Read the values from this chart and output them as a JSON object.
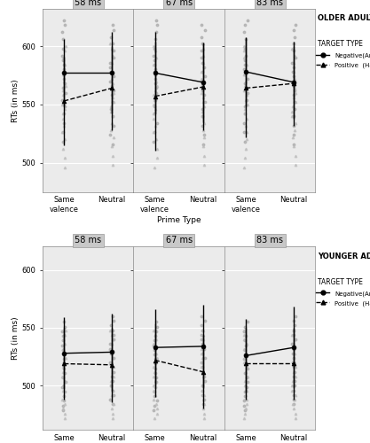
{
  "older": {
    "durations": [
      "58 ms",
      "67 ms",
      "83 ms"
    ],
    "negative": {
      "same_mean": [
        577,
        577,
        578
      ],
      "neutral_mean": [
        577,
        569,
        569
      ],
      "same_ci_low": [
        548,
        542,
        548
      ],
      "same_ci_high": [
        606,
        612,
        608
      ],
      "neutral_ci_low": [
        542,
        535,
        538
      ],
      "neutral_ci_high": [
        612,
        603,
        600
      ]
    },
    "positive": {
      "same_mean": [
        553,
        557,
        564
      ],
      "neutral_mean": [
        564,
        565,
        568
      ],
      "same_ci_low": [
        515,
        510,
        522
      ],
      "same_ci_high": [
        591,
        604,
        606
      ],
      "neutral_ci_low": [
        528,
        528,
        532
      ],
      "neutral_ci_high": [
        600,
        602,
        604
      ]
    },
    "scatter_neg_same": [
      [
        622,
        618,
        612,
        606,
        598,
        592,
        588,
        584,
        580,
        576,
        572,
        568,
        564,
        560,
        554,
        548,
        542,
        534,
        526,
        518
      ],
      [
        622,
        618,
        612,
        606,
        598,
        592,
        588,
        584,
        580,
        576,
        572,
        568,
        564,
        560,
        554,
        548,
        542,
        534,
        526,
        518
      ],
      [
        622,
        618,
        612,
        606,
        598,
        592,
        588,
        584,
        580,
        576,
        572,
        568,
        564,
        560,
        554,
        548,
        542,
        534,
        526,
        518
      ]
    ],
    "scatter_neg_neutral": [
      [
        618,
        614,
        608,
        602,
        596,
        590,
        586,
        582,
        578,
        574,
        570,
        566,
        562,
        558,
        552,
        546,
        540,
        532,
        524,
        516
      ],
      [
        618,
        614,
        608,
        602,
        596,
        590,
        586,
        582,
        578,
        574,
        570,
        566,
        562,
        558,
        552,
        546,
        540,
        532,
        524,
        516
      ],
      [
        618,
        614,
        608,
        602,
        596,
        590,
        586,
        582,
        578,
        574,
        570,
        566,
        562,
        558,
        552,
        546,
        540,
        532,
        524,
        516
      ]
    ],
    "scatter_pos_same": [
      [
        600,
        596,
        590,
        584,
        576,
        570,
        566,
        562,
        558,
        554,
        550,
        546,
        542,
        538,
        532,
        526,
        520,
        512,
        504,
        496
      ],
      [
        600,
        596,
        590,
        584,
        576,
        570,
        566,
        562,
        558,
        554,
        550,
        546,
        542,
        538,
        532,
        526,
        520,
        512,
        504,
        496
      ],
      [
        600,
        596,
        590,
        584,
        576,
        570,
        566,
        562,
        558,
        554,
        550,
        546,
        542,
        538,
        532,
        526,
        520,
        512,
        504,
        496
      ]
    ],
    "scatter_pos_neutral": [
      [
        602,
        598,
        592,
        586,
        578,
        572,
        568,
        564,
        560,
        556,
        552,
        548,
        544,
        540,
        534,
        528,
        522,
        514,
        506,
        498
      ],
      [
        602,
        598,
        592,
        586,
        578,
        572,
        568,
        564,
        560,
        556,
        552,
        548,
        544,
        540,
        534,
        528,
        522,
        514,
        506,
        498
      ],
      [
        602,
        598,
        592,
        586,
        578,
        572,
        568,
        564,
        560,
        556,
        552,
        548,
        544,
        540,
        534,
        528,
        522,
        514,
        506,
        498
      ]
    ],
    "ylim": [
      475,
      632
    ],
    "yticks": [
      500,
      550,
      600
    ]
  },
  "younger": {
    "durations": [
      "58 ms",
      "67 ms",
      "83 ms"
    ],
    "negative": {
      "same_mean": [
        528,
        533,
        526
      ],
      "neutral_mean": [
        529,
        534,
        533
      ],
      "same_ci_low": [
        497,
        500,
        494
      ],
      "same_ci_high": [
        559,
        566,
        558
      ],
      "neutral_ci_low": [
        496,
        498,
        498
      ],
      "neutral_ci_high": [
        562,
        570,
        568
      ]
    },
    "positive": {
      "same_mean": [
        519,
        522,
        519
      ],
      "neutral_mean": [
        518,
        512,
        519
      ],
      "same_ci_low": [
        488,
        490,
        488
      ],
      "same_ci_high": [
        550,
        554,
        550
      ],
      "neutral_ci_low": [
        486,
        480,
        488
      ],
      "neutral_ci_high": [
        550,
        544,
        550
      ]
    },
    "scatter_neg_same": [
      [
        555,
        551,
        547,
        543,
        539,
        535,
        531,
        527,
        523,
        519,
        515,
        511,
        507,
        503,
        499,
        495,
        491,
        487,
        483,
        479
      ],
      [
        555,
        551,
        547,
        543,
        539,
        535,
        531,
        527,
        523,
        519,
        515,
        511,
        507,
        503,
        499,
        495,
        491,
        487,
        483,
        479
      ],
      [
        555,
        551,
        547,
        543,
        539,
        535,
        531,
        527,
        523,
        519,
        515,
        511,
        507,
        503,
        499,
        495,
        491,
        487,
        483,
        479
      ]
    ],
    "scatter_neg_neutral": [
      [
        560,
        556,
        552,
        548,
        544,
        540,
        536,
        532,
        528,
        524,
        520,
        516,
        512,
        508,
        504,
        500,
        496,
        492,
        488,
        484
      ],
      [
        560,
        556,
        552,
        548,
        544,
        540,
        536,
        532,
        528,
        524,
        520,
        516,
        512,
        508,
        504,
        500,
        496,
        492,
        488,
        484
      ],
      [
        560,
        556,
        552,
        548,
        544,
        540,
        536,
        532,
        528,
        524,
        520,
        516,
        512,
        508,
        504,
        500,
        496,
        492,
        488,
        484
      ]
    ],
    "scatter_pos_same": [
      [
        548,
        544,
        540,
        536,
        532,
        528,
        524,
        520,
        516,
        512,
        508,
        504,
        500,
        496,
        492,
        488,
        484,
        480,
        476,
        472
      ],
      [
        548,
        544,
        540,
        536,
        532,
        528,
        524,
        520,
        516,
        512,
        508,
        504,
        500,
        496,
        492,
        488,
        484,
        480,
        476,
        472
      ],
      [
        548,
        544,
        540,
        536,
        532,
        528,
        524,
        520,
        516,
        512,
        508,
        504,
        500,
        496,
        492,
        488,
        484,
        480,
        476,
        472
      ]
    ],
    "scatter_pos_neutral": [
      [
        548,
        544,
        540,
        536,
        532,
        528,
        524,
        520,
        516,
        512,
        508,
        504,
        500,
        496,
        492,
        488,
        484,
        480,
        476,
        472
      ],
      [
        548,
        544,
        540,
        536,
        532,
        528,
        524,
        520,
        516,
        512,
        508,
        504,
        500,
        496,
        492,
        488,
        484,
        480,
        476,
        472
      ],
      [
        548,
        544,
        540,
        536,
        532,
        528,
        524,
        520,
        516,
        512,
        508,
        504,
        500,
        496,
        492,
        488,
        484,
        480,
        476,
        472
      ]
    ],
    "ylim": [
      462,
      620
    ],
    "yticks": [
      500,
      550,
      600
    ]
  },
  "panel_title_bg": "#c8c8c8",
  "panel_bg": "#ebebeb",
  "grid_color": "#ffffff",
  "scatter_color_neg": "#aaaaaa",
  "scatter_color_pos": "#bbbbbb",
  "durations": [
    "58 ms",
    "67 ms",
    "83 ms"
  ]
}
